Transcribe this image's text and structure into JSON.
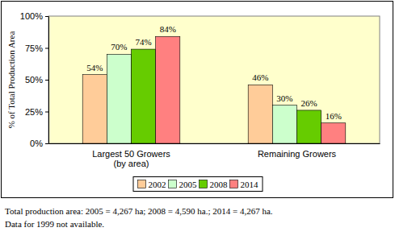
{
  "chart_data": {
    "type": "bar",
    "y_label": "% of Total Production Area",
    "categories": [
      "Largest 50 Growers (by area)",
      "Remaining Growers"
    ],
    "series": [
      {
        "name": "2002",
        "color": "#FFCC99",
        "values": [
          54,
          46
        ],
        "value_labels": [
          "54%",
          "46%"
        ]
      },
      {
        "name": "2005",
        "color": "#CCFFCC",
        "values": [
          70,
          30
        ],
        "value_labels": [
          "70%",
          "30%"
        ]
      },
      {
        "name": "2008",
        "color": "#66CC00",
        "values": [
          74,
          26
        ],
        "value_labels": [
          "74%",
          "26%"
        ]
      },
      {
        "name": "2014",
        "color": "#FF8080",
        "values": [
          84,
          16
        ],
        "value_labels": [
          "84%",
          "16%"
        ]
      }
    ],
    "ylim": [
      0,
      100
    ],
    "yticks": [
      {
        "value": 0,
        "label": "0%"
      },
      {
        "value": 25,
        "label": "25%"
      },
      {
        "value": 50,
        "label": "50%"
      },
      {
        "value": 75,
        "label": "75%"
      },
      {
        "value": 100,
        "label": "100%"
      }
    ],
    "grid": false,
    "data_labels": true,
    "legend": "bottom",
    "annotations": [
      "Total production area: 2005 = 4,267 ha; 2008 = 4,590 ha.; 2014 = 4,267 ha.",
      "Data for 1999 not available."
    ]
  }
}
